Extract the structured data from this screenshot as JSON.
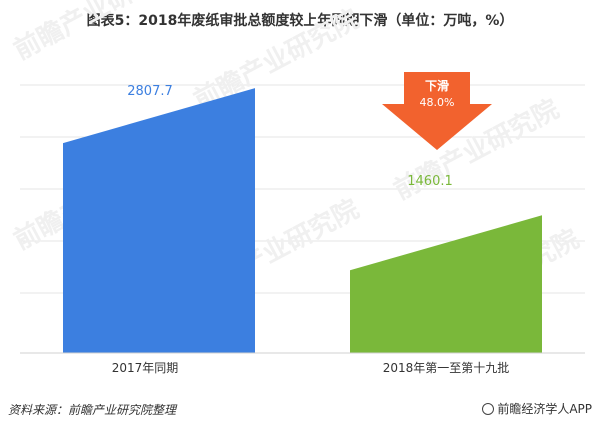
{
  "chart_data": {
    "type": "bar",
    "title": "图表5：2018年废纸审批总额度较上年同期下滑（单位：万吨，%）",
    "categories": [
      "2017年同期",
      "2018年第一至第十九批"
    ],
    "values": [
      2807.7,
      1460.1
    ],
    "value_labels": [
      "2807.7",
      "1460.1"
    ],
    "colors": [
      "#3c7fe0",
      "#7ab83a"
    ],
    "ylim": [
      0,
      3000
    ],
    "grid": true,
    "legend": "none",
    "annotation": {
      "label": "下滑",
      "value": "48.0%",
      "color": "#f2622e"
    }
  },
  "footer": {
    "source": "资料来源：前瞻产业研究院整理",
    "brand": "前瞻经济学人APP"
  },
  "watermark": "前瞻产业研究院"
}
